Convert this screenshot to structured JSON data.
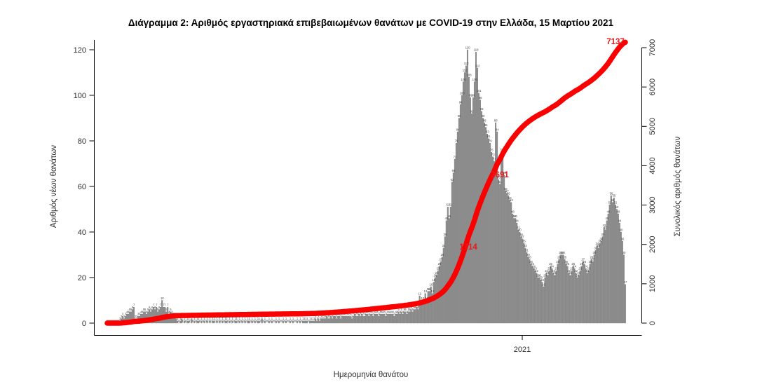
{
  "title": "Διάγραμμα 2: Αριθμός εργαστηριακά επιβεβαιωμένων θανάτων με COVID-19 στην Ελλάδα, 15 Μαρτίου 2021",
  "axes": {
    "left_label": "Αριθμός νέων θανάτων",
    "right_label": "Συνολικός αριθμός θανάτων",
    "x_label": "Ημερομηνία θανάτου",
    "x_tick": "2021",
    "left_ticks": [
      0,
      20,
      40,
      60,
      80,
      100,
      120
    ],
    "right_ticks": [
      0,
      1000,
      2000,
      3000,
      4000,
      5000,
      6000,
      7000
    ]
  },
  "annotations": {
    "total_label": "7137",
    "mid_label": "3691",
    "low_label": "1714"
  },
  "colors": {
    "bar_fill": "#8f8f8f",
    "bar_border": "#6f6f6f",
    "bar_value_text": "#3c3c3c",
    "line_red": "#fb0000",
    "annotation_red": "#e41a1c",
    "axis_line": "#000000",
    "tick_text": "#2e2e2e",
    "title_text": "#000000"
  },
  "chart_data": {
    "type": "bar",
    "title": "Διάγραμμα 2: Αριθμός εργαστηριακά επιβεβαιωμένων θανάτων με COVID-19 στην Ελλάδα, 15 Μαρτίου 2021",
    "xlabel": "Ημερομηνία θανάτου",
    "ylabel_left": "Αριθμός νέων θανάτων",
    "ylabel_right": "Συνολικός αριθμός θανάτων",
    "ylim_left": [
      0,
      120
    ],
    "ylim_right": [
      0,
      7000
    ],
    "x_year_tick": "2021",
    "bar_value_labels_shown": true,
    "bar_series": {
      "name": "Αριθμός νέων θανάτων",
      "values": [
        0,
        0,
        0,
        0,
        0,
        0,
        0,
        0,
        0,
        1,
        2,
        3,
        2,
        3,
        4,
        4,
        5,
        5,
        6,
        7,
        2,
        2,
        3,
        3,
        4,
        4,
        5,
        5,
        4,
        5,
        6,
        5,
        6,
        7,
        6,
        7,
        5,
        6,
        7,
        10,
        7,
        7,
        5,
        7,
        4,
        5,
        4,
        3,
        3,
        2,
        1,
        0,
        1,
        2,
        0,
        1,
        0,
        1,
        1,
        0,
        2,
        0,
        1,
        0,
        1,
        1,
        0,
        1,
        0,
        1,
        0,
        1,
        0,
        1,
        0,
        1,
        1,
        0,
        1,
        0,
        1,
        0,
        1,
        0,
        1,
        1,
        0,
        1,
        0,
        1,
        0,
        1,
        1,
        0,
        1,
        0,
        1,
        0,
        1,
        0,
        1,
        1,
        0,
        1,
        0,
        1,
        0,
        1,
        1,
        0,
        2,
        0,
        1,
        0,
        0,
        1,
        0,
        1,
        0,
        0,
        1,
        0,
        1,
        0,
        0,
        1,
        0,
        1,
        0,
        0,
        1,
        0,
        1,
        0,
        0,
        1,
        0,
        1,
        0,
        1,
        1,
        1,
        1,
        0,
        1,
        1,
        1,
        1,
        2,
        1,
        2,
        1,
        2,
        2,
        2,
        2,
        3,
        2,
        2,
        3,
        2,
        3,
        3,
        2,
        3,
        3,
        2,
        3,
        3,
        3,
        3,
        3,
        3,
        3,
        2,
        3,
        4,
        3,
        3,
        4,
        3,
        4,
        3,
        3,
        4,
        4,
        3,
        4,
        4,
        3,
        4,
        4,
        4,
        3,
        4,
        4,
        4,
        4,
        3,
        4,
        4,
        4,
        4,
        4,
        3,
        4,
        4,
        5,
        4,
        5,
        4,
        5,
        5,
        4,
        5,
        5,
        6,
        5,
        6,
        6,
        7,
        6,
        12,
        8,
        10,
        9,
        13,
        10,
        14,
        14,
        16,
        13,
        18,
        20,
        21,
        23,
        25,
        27,
        29,
        33,
        38,
        45,
        51,
        46,
        51,
        62,
        66,
        72,
        79,
        84,
        90,
        96,
        100,
        106,
        110,
        113,
        120,
        108,
        99,
        92,
        99,
        106,
        119,
        112,
        101,
        98,
        93,
        90,
        88,
        86,
        83,
        81,
        79,
        75,
        73,
        71,
        88,
        84,
        63,
        61,
        75,
        73,
        65,
        58,
        57,
        56,
        54,
        53,
        48,
        46,
        46,
        44,
        41,
        40,
        38,
        37,
        35,
        33,
        31,
        29,
        28,
        26,
        25,
        24,
        23,
        22,
        20,
        20,
        19,
        18,
        16,
        20,
        22,
        21,
        23,
        25,
        24,
        22,
        21,
        23,
        26,
        28,
        30,
        30,
        30,
        28,
        26,
        25,
        22,
        21,
        23,
        25,
        24,
        22,
        20,
        21,
        23,
        25,
        27,
        26,
        24,
        22,
        23,
        26,
        28,
        27,
        30,
        32,
        34,
        33,
        35,
        36,
        38,
        42,
        41,
        45,
        48,
        52,
        56,
        53,
        55,
        52,
        50,
        48,
        44,
        40,
        36,
        30,
        17
      ]
    },
    "line_series": {
      "name": "Συνολικός αριθμός θανάτων",
      "derived": "cumulative_of_bar_series",
      "final_value": 7137,
      "labeled_points": [
        1714,
        3691,
        7137
      ]
    },
    "legend_position": "none",
    "grid": false
  }
}
